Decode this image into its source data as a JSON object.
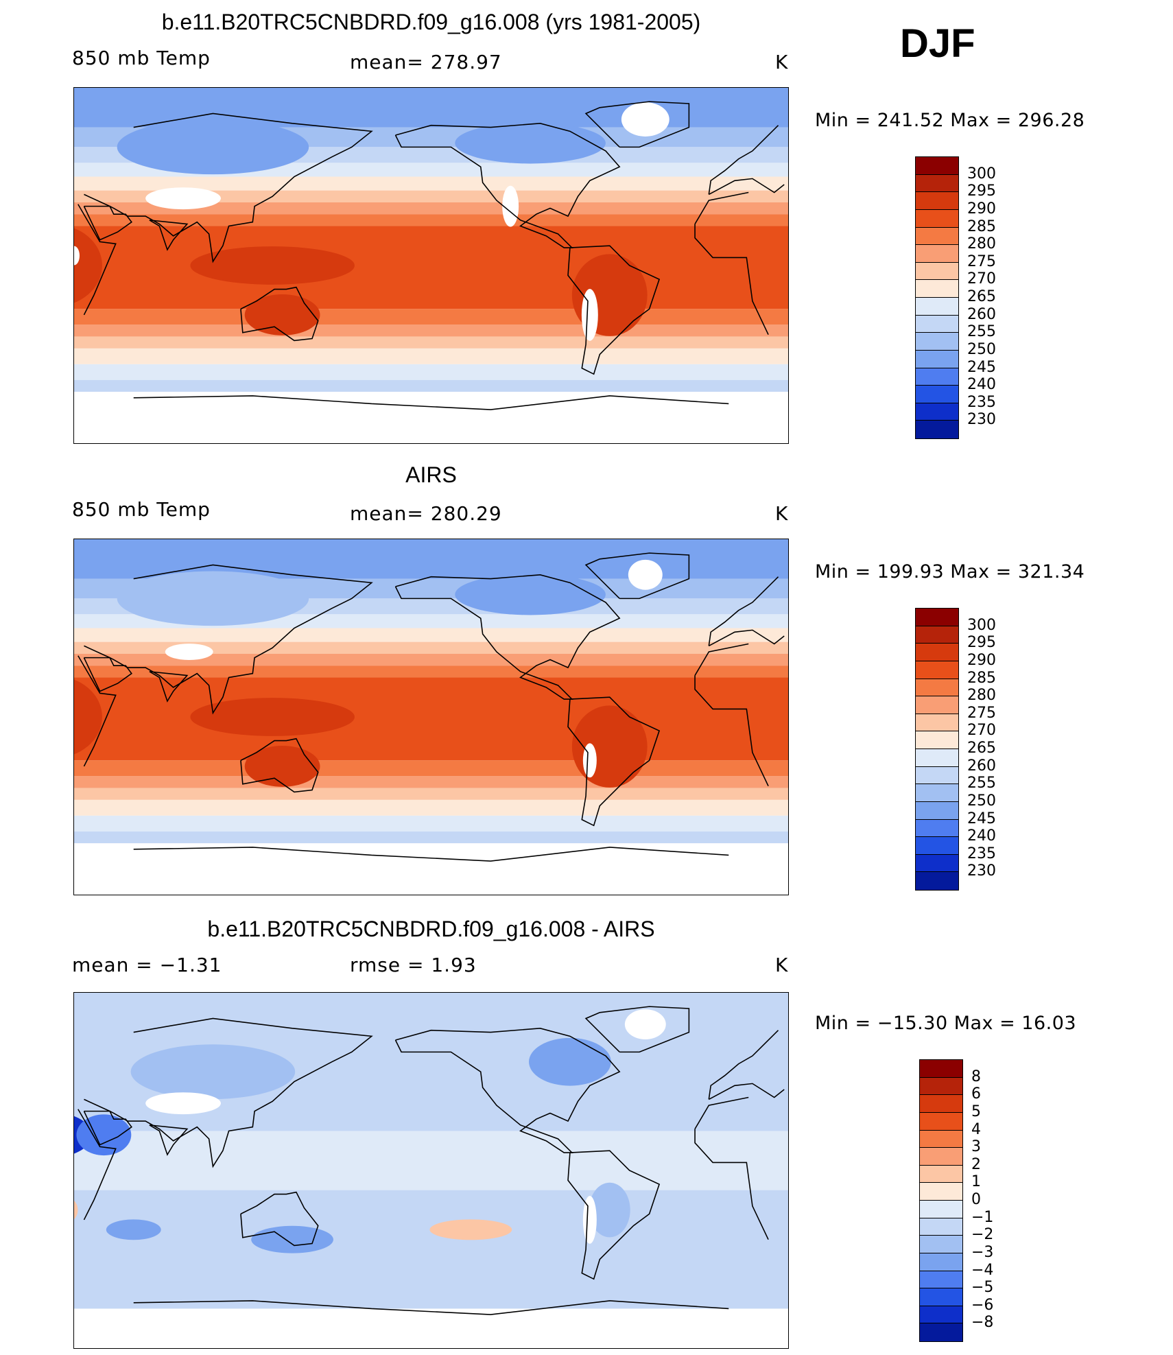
{
  "season": "DJF",
  "units": "K",
  "panels": [
    {
      "title": "b.e11.B20TRC5CNBDRD.f09_g16.008 (yrs 1981-2005)",
      "left_label": "850 mb Temp",
      "center_label": "mean=  278.97",
      "right_label": "K",
      "minmax": "Min  =  241.52  Max  =  296.28"
    },
    {
      "title": "AIRS",
      "left_label": "850 mb Temp",
      "center_label": "mean=  280.29",
      "right_label": "K",
      "minmax": "Min  =  199.93  Max  =  321.34"
    },
    {
      "title": "b.e11.B20TRC5CNBDRD.f09_g16.008 - AIRS",
      "left_label": "mean  =    −1.31",
      "center_label": "rmse  =     1.93",
      "right_label": "K",
      "minmax": "Min  =  −15.30  Max  =    16.03"
    }
  ],
  "colorbars": {
    "temperature": {
      "labels": [
        "300",
        "295",
        "290",
        "285",
        "280",
        "275",
        "270",
        "265",
        "260",
        "255",
        "250",
        "245",
        "240",
        "235",
        "230"
      ],
      "colors": [
        "#8b0000",
        "#b5230a",
        "#d63a0e",
        "#e8501a",
        "#f47a43",
        "#f99e75",
        "#fcc6a5",
        "#fde9d8",
        "#dfeaf8",
        "#c4d7f5",
        "#a2c0f2",
        "#7aa3ef",
        "#4f7df0",
        "#2354e4",
        "#0e2fca",
        "#041a9c"
      ]
    },
    "difference": {
      "labels": [
        "8",
        "6",
        "5",
        "4",
        "3",
        "2",
        "1",
        "0",
        "−1",
        "−2",
        "−3",
        "−4",
        "−5",
        "−6",
        "−8"
      ],
      "colors": [
        "#8b0000",
        "#b5230a",
        "#d63a0e",
        "#e8501a",
        "#f47a43",
        "#f99e75",
        "#fcc6a5",
        "#fde9d8",
        "#dfeaf8",
        "#c4d7f5",
        "#a2c0f2",
        "#7aa3ef",
        "#4f7df0",
        "#2354e4",
        "#0e2fca",
        "#041a9c"
      ]
    }
  }
}
